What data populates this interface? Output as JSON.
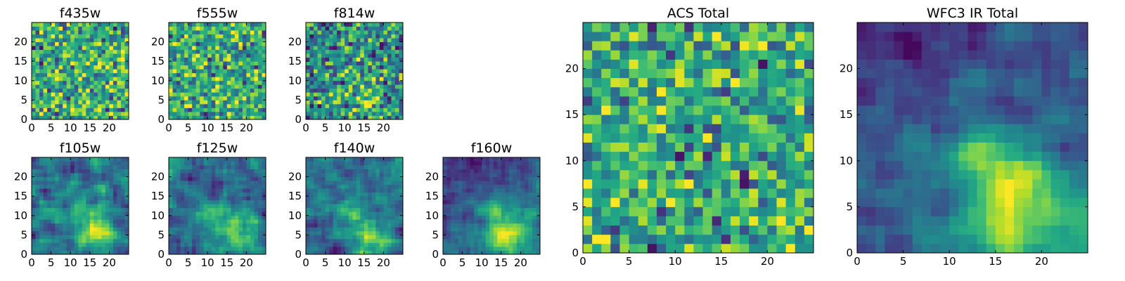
{
  "chart_data": {
    "type": "heatmap",
    "colormap": "viridis",
    "pixel_grid": [
      25,
      25
    ],
    "panels": [
      {
        "id": "f435w",
        "title": "f435w",
        "row": 0,
        "col": 0,
        "kind": "small",
        "seed": 11,
        "pattern": "noise",
        "x_ticks": [
          0,
          5,
          10,
          15,
          20
        ],
        "y_ticks": [
          0,
          5,
          10,
          15,
          20
        ],
        "xlim": [
          0,
          25
        ],
        "ylim": [
          0,
          25
        ]
      },
      {
        "id": "f555w",
        "title": "f555w",
        "row": 0,
        "col": 1,
        "kind": "small",
        "seed": 23,
        "pattern": "noise",
        "x_ticks": [
          0,
          5,
          10,
          15,
          20
        ],
        "y_ticks": [
          0,
          5,
          10,
          15,
          20
        ],
        "xlim": [
          0,
          25
        ],
        "ylim": [
          0,
          25
        ]
      },
      {
        "id": "f814w",
        "title": "f814w",
        "row": 0,
        "col": 2,
        "kind": "small",
        "seed": 37,
        "pattern": "noise_blob",
        "x_ticks": [
          0,
          5,
          10,
          15,
          20
        ],
        "y_ticks": [
          0,
          5,
          10,
          15,
          20
        ],
        "xlim": [
          0,
          25
        ],
        "ylim": [
          0,
          25
        ]
      },
      {
        "id": "f105w",
        "title": "f105w",
        "row": 1,
        "col": 0,
        "kind": "small",
        "seed": 41,
        "pattern": "smooth_blob",
        "x_ticks": [
          0,
          5,
          10,
          15,
          20
        ],
        "y_ticks": [
          0,
          5,
          10,
          15,
          20
        ],
        "xlim": [
          0,
          25
        ],
        "ylim": [
          0,
          25
        ]
      },
      {
        "id": "f125w",
        "title": "f125w",
        "row": 1,
        "col": 1,
        "kind": "small",
        "seed": 53,
        "pattern": "smooth_blob",
        "x_ticks": [
          0,
          5,
          10,
          15,
          20
        ],
        "y_ticks": [
          0,
          5,
          10,
          15,
          20
        ],
        "xlim": [
          0,
          25
        ],
        "ylim": [
          0,
          25
        ]
      },
      {
        "id": "f140w",
        "title": "f140w",
        "row": 1,
        "col": 2,
        "kind": "small",
        "seed": 67,
        "pattern": "smooth_blob",
        "x_ticks": [
          0,
          5,
          10,
          15,
          20
        ],
        "y_ticks": [
          0,
          5,
          10,
          15,
          20
        ],
        "xlim": [
          0,
          25
        ],
        "ylim": [
          0,
          25
        ]
      },
      {
        "id": "f160w",
        "title": "f160w",
        "row": 1,
        "col": 3,
        "kind": "small",
        "seed": 71,
        "pattern": "gradient_blob",
        "x_ticks": [
          0,
          5,
          10,
          15,
          20
        ],
        "y_ticks": [
          0,
          5,
          10,
          15,
          20
        ],
        "xlim": [
          0,
          25
        ],
        "ylim": [
          0,
          25
        ]
      },
      {
        "id": "acs-total",
        "title": "ACS Total",
        "row": 0,
        "col": 4,
        "kind": "large",
        "seed": 83,
        "pattern": "noise",
        "x_ticks": [
          0,
          5,
          10,
          15,
          20
        ],
        "y_ticks": [
          0,
          5,
          10,
          15,
          20
        ],
        "xlim": [
          0,
          25
        ],
        "ylim": [
          0,
          25
        ]
      },
      {
        "id": "wfc3-ir-total",
        "title": "WFC3 IR Total",
        "row": 0,
        "col": 5,
        "kind": "large",
        "seed": 97,
        "pattern": "gradient_blob",
        "x_ticks": [
          0,
          5,
          10,
          15,
          20
        ],
        "y_ticks": [
          0,
          5,
          10,
          15,
          20
        ],
        "xlim": [
          0,
          25
        ],
        "ylim": [
          0,
          25
        ]
      }
    ]
  }
}
